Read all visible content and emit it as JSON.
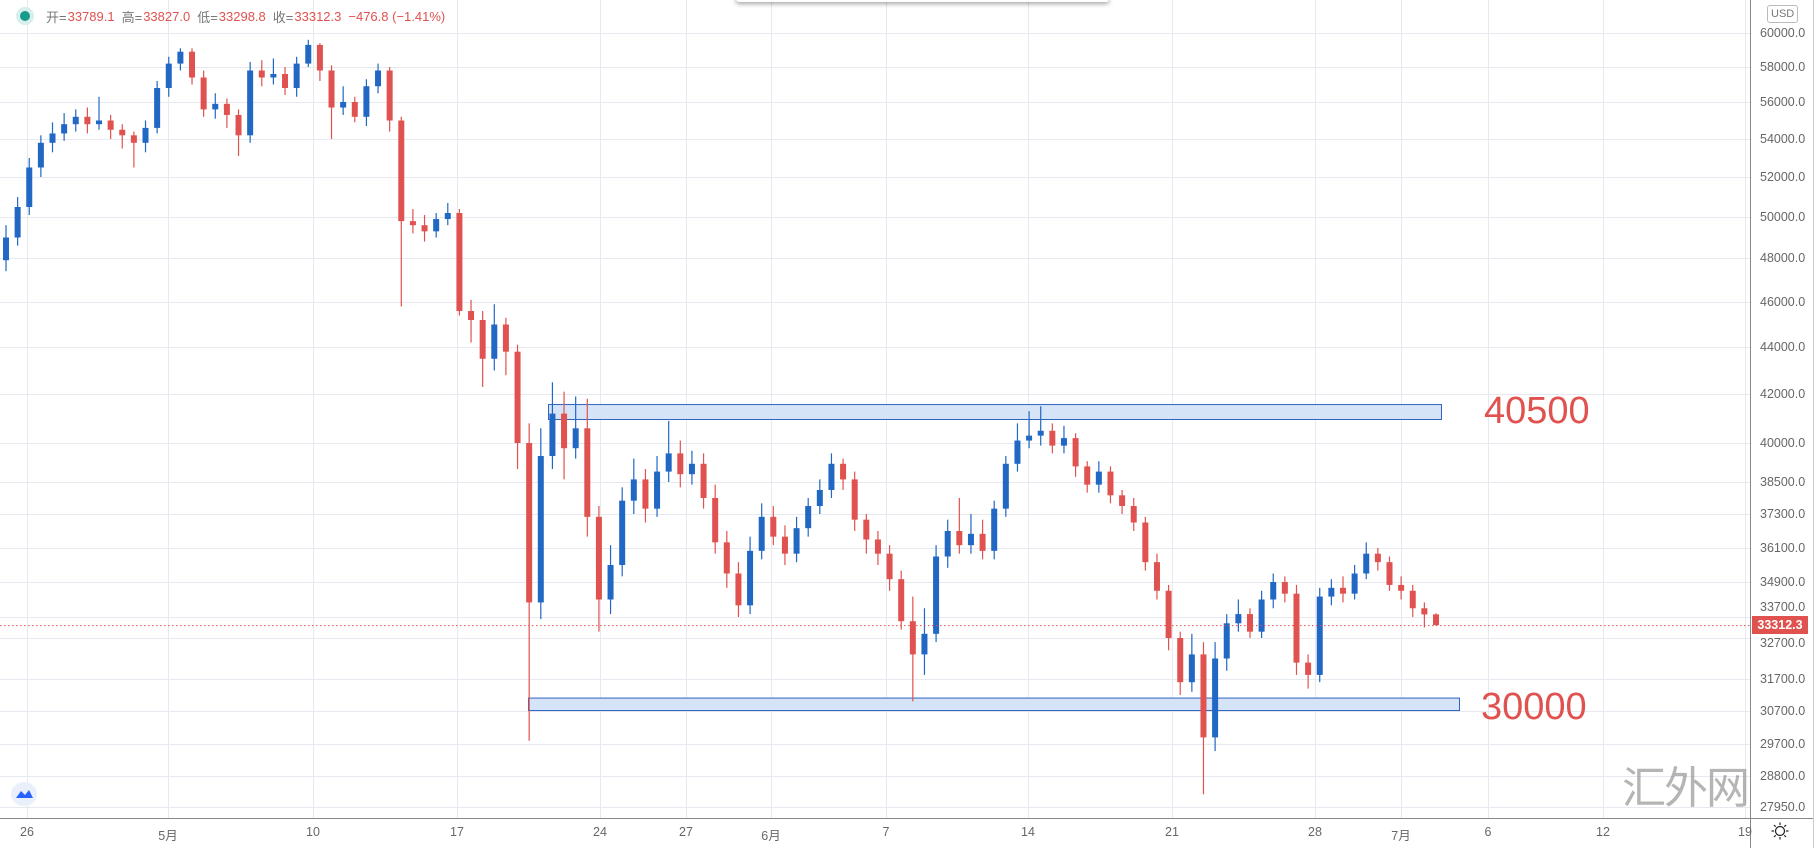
{
  "legend": {
    "open_label": "开=",
    "open": "33789.1",
    "high_label": "高=",
    "high": "33827.0",
    "low_label": "低=",
    "low": "33298.8",
    "close_label": "收=",
    "close": "33312.3",
    "change": "−476.8 (−1.41%)"
  },
  "currency": "USD",
  "watermark": "汇外网",
  "colors": {
    "up": "#2167c4",
    "down": "#e0524f",
    "zone_fill": "#d6e4f8",
    "zone_border": "#2f64c0",
    "grid": "#e6eaf0"
  },
  "chart_data": {
    "type": "candlestick",
    "title": "",
    "y_scale": "log",
    "y_ticks": [
      "60000.0",
      "58000.0",
      "56000.0",
      "54000.0",
      "52000.0",
      "50000.0",
      "48000.0",
      "46000.0",
      "44000.0",
      "42000.0",
      "40000.0",
      "38500.0",
      "37300.0",
      "36100.0",
      "34900.0",
      "33700.0",
      "32700.0",
      "31700.0",
      "30700.0",
      "29700.0",
      "28800.0",
      "27950.0"
    ],
    "x_ticks": [
      "26",
      "5月",
      "10",
      "17",
      "24",
      "27",
      "6月",
      "7",
      "14",
      "21",
      "28",
      "7月",
      "6",
      "12",
      "19"
    ],
    "current_price": "33312.3",
    "grid": true,
    "zones": [
      {
        "label": "40500",
        "price_top": 41590,
        "price_bottom": 40980
      },
      {
        "label": "30000",
        "price_top": 31120,
        "price_bottom": 30730
      }
    ],
    "candles_ohlc": [
      [
        47900,
        49600,
        47400,
        49000
      ],
      [
        49000,
        51000,
        48600,
        50500
      ],
      [
        50500,
        53000,
        50100,
        52500
      ],
      [
        52500,
        54200,
        52000,
        53800
      ],
      [
        53800,
        54900,
        53300,
        54300
      ],
      [
        54300,
        55400,
        53900,
        54800
      ],
      [
        54800,
        55600,
        54400,
        55200
      ],
      [
        55200,
        55700,
        54300,
        54800
      ],
      [
        54800,
        56300,
        54500,
        55000
      ],
      [
        55000,
        55300,
        54000,
        54500
      ],
      [
        54500,
        54800,
        53500,
        54200
      ],
      [
        54200,
        54400,
        52500,
        53800
      ],
      [
        53800,
        55000,
        53300,
        54600
      ],
      [
        54600,
        57200,
        54300,
        56800
      ],
      [
        56800,
        58600,
        56300,
        58200
      ],
      [
        58200,
        59100,
        57800,
        58900
      ],
      [
        58900,
        59100,
        57000,
        57400
      ],
      [
        57400,
        57800,
        55200,
        55600
      ],
      [
        55600,
        56500,
        55100,
        55900
      ],
      [
        55900,
        56200,
        54600,
        55300
      ],
      [
        55300,
        55600,
        53100,
        54200
      ],
      [
        54200,
        58300,
        53800,
        57800
      ],
      [
        57800,
        58400,
        56900,
        57400
      ],
      [
        57400,
        58500,
        57000,
        57600
      ],
      [
        57600,
        58000,
        56400,
        56800
      ],
      [
        56800,
        58600,
        56300,
        58200
      ],
      [
        58200,
        59600,
        58000,
        59300
      ],
      [
        59300,
        59400,
        57200,
        57800
      ],
      [
        57800,
        58100,
        54000,
        55700
      ],
      [
        55700,
        56900,
        55300,
        56000
      ],
      [
        56000,
        56300,
        54900,
        55200
      ],
      [
        55200,
        57300,
        54700,
        56900
      ],
      [
        56900,
        58200,
        56500,
        57800
      ],
      [
        57800,
        58000,
        54400,
        55000
      ],
      [
        55000,
        55200,
        45800,
        49800
      ],
      [
        49800,
        50400,
        49200,
        49600
      ],
      [
        49600,
        50100,
        48800,
        49300
      ],
      [
        49300,
        50200,
        49000,
        49900
      ],
      [
        49900,
        50700,
        49600,
        50200
      ],
      [
        50200,
        50400,
        45400,
        45600
      ],
      [
        45600,
        46100,
        44200,
        45200
      ],
      [
        45200,
        45600,
        42300,
        43500
      ],
      [
        43500,
        45900,
        43000,
        45000
      ],
      [
        45000,
        45300,
        42800,
        43800
      ],
      [
        43800,
        44100,
        39000,
        40000
      ],
      [
        40000,
        40800,
        29800,
        34200
      ],
      [
        34200,
        40600,
        33600,
        39500
      ],
      [
        39500,
        42500,
        39000,
        41200
      ],
      [
        41200,
        42100,
        38600,
        39800
      ],
      [
        39800,
        41900,
        39400,
        40600
      ],
      [
        40600,
        41800,
        36500,
        37200
      ],
      [
        37200,
        37600,
        33000,
        34300
      ],
      [
        34300,
        36200,
        33800,
        35500
      ],
      [
        35500,
        38300,
        35100,
        37800
      ],
      [
        37800,
        39400,
        37300,
        38600
      ],
      [
        38600,
        39000,
        37000,
        37500
      ],
      [
        37500,
        39500,
        37200,
        38900
      ],
      [
        38900,
        40900,
        38500,
        39600
      ],
      [
        39600,
        40100,
        38300,
        38800
      ],
      [
        38800,
        39700,
        38400,
        39200
      ],
      [
        39200,
        39600,
        37500,
        37900
      ],
      [
        37900,
        38400,
        35900,
        36300
      ],
      [
        36300,
        36700,
        34700,
        35200
      ],
      [
        35200,
        35600,
        33700,
        34100
      ],
      [
        34100,
        36500,
        33800,
        36000
      ],
      [
        36000,
        37700,
        35700,
        37200
      ],
      [
        37200,
        37600,
        36200,
        36500
      ],
      [
        36500,
        36900,
        35500,
        35900
      ],
      [
        35900,
        37200,
        35600,
        36800
      ],
      [
        36800,
        37900,
        36500,
        37600
      ],
      [
        37600,
        38600,
        37300,
        38200
      ],
      [
        38200,
        39600,
        37900,
        39200
      ],
      [
        39200,
        39400,
        38200,
        38600
      ],
      [
        38600,
        38900,
        36700,
        37100
      ],
      [
        37100,
        37300,
        35900,
        36400
      ],
      [
        36400,
        36700,
        35500,
        35900
      ],
      [
        35900,
        36200,
        34600,
        35000
      ],
      [
        35000,
        35300,
        33100,
        33500
      ],
      [
        33500,
        34400,
        31000,
        32300
      ],
      [
        32300,
        34000,
        31800,
        32900
      ],
      [
        32900,
        36200,
        32600,
        35800
      ],
      [
        35800,
        37100,
        35400,
        36700
      ],
      [
        36700,
        37900,
        35900,
        36200
      ],
      [
        36200,
        37300,
        35900,
        36600
      ],
      [
        36600,
        37100,
        35700,
        36000
      ],
      [
        36000,
        37800,
        35700,
        37500
      ],
      [
        37500,
        39500,
        37200,
        39200
      ],
      [
        39200,
        40800,
        38900,
        40100
      ],
      [
        40100,
        41300,
        39800,
        40300
      ],
      [
        40300,
        41500,
        39900,
        40500
      ],
      [
        40500,
        40800,
        39600,
        39900
      ],
      [
        39900,
        40700,
        39600,
        40200
      ],
      [
        40200,
        40400,
        38700,
        39100
      ],
      [
        39100,
        39300,
        38100,
        38400
      ],
      [
        38400,
        39300,
        38100,
        38900
      ],
      [
        38900,
        39100,
        37700,
        38000
      ],
      [
        38000,
        38200,
        37300,
        37600
      ],
      [
        37600,
        37900,
        36700,
        37000
      ],
      [
        37000,
        37200,
        35300,
        35600
      ],
      [
        35600,
        35900,
        34300,
        34600
      ],
      [
        34600,
        34800,
        32400,
        32700
      ],
      [
        32700,
        33000,
        31200,
        31600
      ],
      [
        31600,
        32900,
        31300,
        32300
      ],
      [
        32300,
        32600,
        28300,
        29900
      ],
      [
        29900,
        32600,
        29500,
        32200
      ],
      [
        32200,
        33800,
        31900,
        33400
      ],
      [
        33400,
        34300,
        33000,
        33800
      ],
      [
        33800,
        34000,
        32700,
        33000
      ],
      [
        33000,
        34600,
        32700,
        34300
      ],
      [
        34300,
        35200,
        34000,
        34900
      ],
      [
        34900,
        35100,
        34200,
        34500
      ],
      [
        34500,
        34800,
        31800,
        32100
      ],
      [
        32100,
        32300,
        31400,
        31800
      ],
      [
        31800,
        34700,
        31600,
        34400
      ],
      [
        34400,
        35000,
        34100,
        34700
      ],
      [
        34700,
        35100,
        34200,
        34500
      ],
      [
        34500,
        35500,
        34300,
        35200
      ],
      [
        35200,
        36300,
        35000,
        35900
      ],
      [
        35900,
        36100,
        35300,
        35600
      ],
      [
        35600,
        35800,
        34600,
        34800
      ],
      [
        34800,
        35100,
        34300,
        34600
      ],
      [
        34600,
        34800,
        33700,
        34000
      ],
      [
        34000,
        34200,
        33200,
        33789.1
      ],
      [
        33789.1,
        33827.0,
        33298.8,
        33312.3
      ]
    ]
  }
}
